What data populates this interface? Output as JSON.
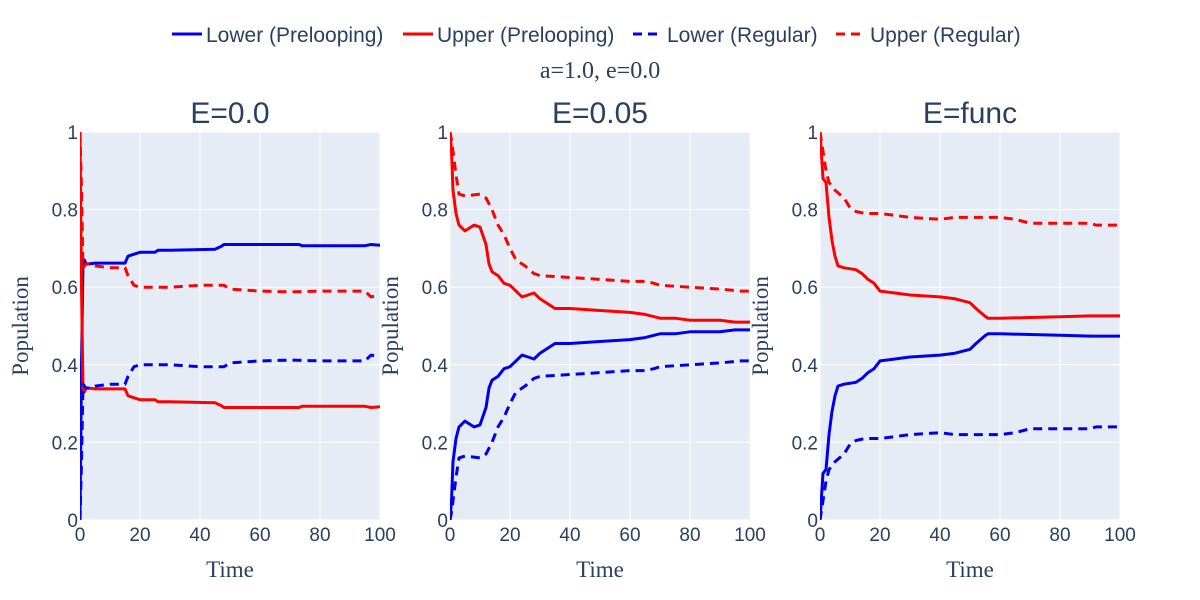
{
  "chart_data": {
    "type": "line",
    "subtitle": "a=1.0, e=0.0",
    "legend_position": "top",
    "colors": {
      "lower": "#0000ee",
      "upper": "#ff0000",
      "plot_bg": "#e5ecf6",
      "grid": "#ffffff",
      "text": "#2a3f5f"
    },
    "legend": [
      {
        "label": "Lower (Prelooping)",
        "color": "#0000ee",
        "dash": "solid"
      },
      {
        "label": "Upper (Prelooping)",
        "color": "#ff0000",
        "dash": "solid"
      },
      {
        "label": "Lower (Regular)",
        "color": "#0000ee",
        "dash": "dash"
      },
      {
        "label": "Upper (Regular)",
        "color": "#ff0000",
        "dash": "dash"
      }
    ],
    "panels": [
      {
        "title": "E=0.0",
        "xlabel": "Time",
        "ylabel": "Population",
        "xlim": [
          0,
          100
        ],
        "ylim": [
          0,
          1
        ],
        "xticks": [
          "0",
          "20",
          "40",
          "60",
          "80",
          "100"
        ],
        "yticks": [
          "0",
          "0.2",
          "0.4",
          "0.6",
          "0.8",
          "1"
        ],
        "series": [
          {
            "name": "Lower (Prelooping)",
            "color": "#0000ee",
            "dash": "solid",
            "x": [
              0,
              0.5,
              1,
              1.5,
              2,
              3,
              5,
              15,
              16,
              18,
              20,
              25,
              26,
              30,
              45,
              47,
              48,
              55,
              73,
              74,
              80,
              95,
              97,
              100
            ],
            "y": [
              0,
              0.4,
              0.66,
              0.67,
              0.66,
              0.66,
              0.662,
              0.662,
              0.68,
              0.685,
              0.69,
              0.69,
              0.695,
              0.695,
              0.698,
              0.705,
              0.71,
              0.71,
              0.71,
              0.707,
              0.707,
              0.707,
              0.71,
              0.708
            ]
          },
          {
            "name": "Upper (Prelooping)",
            "color": "#ff0000",
            "dash": "solid",
            "x": [
              0,
              0.5,
              1,
              1.5,
              2,
              3,
              5,
              15,
              16,
              18,
              20,
              25,
              26,
              30,
              45,
              47,
              48,
              55,
              73,
              74,
              80,
              95,
              97,
              100
            ],
            "y": [
              1,
              0.6,
              0.34,
              0.33,
              0.34,
              0.34,
              0.338,
              0.338,
              0.32,
              0.315,
              0.31,
              0.31,
              0.305,
              0.305,
              0.302,
              0.295,
              0.29,
              0.29,
              0.29,
              0.293,
              0.293,
              0.293,
              0.29,
              0.292
            ]
          },
          {
            "name": "Lower (Regular)",
            "color": "#0000ee",
            "dash": "dash",
            "x": [
              0,
              0.5,
              1,
              2,
              3,
              5,
              10,
              15,
              16,
              18,
              20,
              30,
              40,
              48,
              50,
              60,
              70,
              80,
              90,
              95,
              97,
              100
            ],
            "y": [
              0,
              0.15,
              0.35,
              0.34,
              0.34,
              0.345,
              0.35,
              0.35,
              0.37,
              0.395,
              0.4,
              0.4,
              0.395,
              0.395,
              0.405,
              0.41,
              0.412,
              0.41,
              0.41,
              0.41,
              0.425,
              0.42
            ]
          },
          {
            "name": "Upper (Regular)",
            "color": "#ff0000",
            "dash": "dash",
            "x": [
              0,
              0.5,
              1,
              2,
              3,
              5,
              10,
              15,
              16,
              18,
              20,
              30,
              40,
              48,
              50,
              60,
              70,
              80,
              90,
              95,
              97,
              100
            ],
            "y": [
              1,
              0.85,
              0.65,
              0.66,
              0.66,
              0.655,
              0.65,
              0.65,
              0.63,
              0.605,
              0.6,
              0.6,
              0.605,
              0.605,
              0.595,
              0.59,
              0.588,
              0.59,
              0.59,
              0.59,
              0.575,
              0.58
            ]
          }
        ]
      },
      {
        "title": "E=0.05",
        "xlabel": "Time",
        "ylabel": "Population",
        "xlim": [
          0,
          100
        ],
        "ylim": [
          0,
          1
        ],
        "xticks": [
          "0",
          "20",
          "40",
          "60",
          "80",
          "100"
        ],
        "yticks": [
          "0",
          "0.2",
          "0.4",
          "0.6",
          "0.8",
          "1"
        ],
        "series": [
          {
            "name": "Lower (Prelooping)",
            "color": "#0000ee",
            "dash": "solid",
            "x": [
              0,
              0.5,
              1,
              2,
              3,
              5,
              8,
              10,
              12,
              13,
              14,
              16,
              18,
              20,
              22,
              24,
              26,
              28,
              30,
              35,
              40,
              50,
              60,
              65,
              70,
              75,
              80,
              85,
              90,
              95,
              100
            ],
            "y": [
              0,
              0.05,
              0.15,
              0.21,
              0.24,
              0.255,
              0.24,
              0.245,
              0.29,
              0.34,
              0.36,
              0.37,
              0.39,
              0.395,
              0.41,
              0.425,
              0.42,
              0.415,
              0.43,
              0.455,
              0.455,
              0.46,
              0.465,
              0.47,
              0.48,
              0.48,
              0.485,
              0.485,
              0.485,
              0.49,
              0.49
            ]
          },
          {
            "name": "Upper (Prelooping)",
            "color": "#ff0000",
            "dash": "solid",
            "x": [
              0,
              0.5,
              1,
              2,
              3,
              5,
              8,
              10,
              12,
              13,
              14,
              16,
              18,
              20,
              22,
              24,
              26,
              28,
              30,
              35,
              40,
              50,
              60,
              65,
              70,
              75,
              80,
              85,
              90,
              95,
              100
            ],
            "y": [
              1,
              0.95,
              0.85,
              0.79,
              0.76,
              0.745,
              0.76,
              0.755,
              0.71,
              0.66,
              0.64,
              0.63,
              0.61,
              0.605,
              0.59,
              0.575,
              0.58,
              0.585,
              0.57,
              0.545,
              0.545,
              0.54,
              0.535,
              0.53,
              0.52,
              0.52,
              0.515,
              0.515,
              0.515,
              0.51,
              0.51
            ]
          },
          {
            "name": "Lower (Regular)",
            "color": "#0000ee",
            "dash": "dash",
            "x": [
              0,
              0.5,
              1,
              2,
              3,
              5,
              10,
              12,
              14,
              16,
              18,
              20,
              22,
              25,
              28,
              30,
              40,
              50,
              60,
              65,
              68,
              70,
              80,
              90,
              97,
              100
            ],
            "y": [
              0,
              0.02,
              0.05,
              0.11,
              0.16,
              0.165,
              0.16,
              0.17,
              0.2,
              0.24,
              0.265,
              0.3,
              0.33,
              0.345,
              0.365,
              0.37,
              0.375,
              0.38,
              0.385,
              0.385,
              0.39,
              0.395,
              0.4,
              0.405,
              0.41,
              0.41
            ]
          },
          {
            "name": "Upper (Regular)",
            "color": "#ff0000",
            "dash": "dash",
            "x": [
              0,
              0.5,
              1,
              2,
              3,
              5,
              10,
              12,
              14,
              16,
              18,
              20,
              22,
              25,
              28,
              30,
              40,
              50,
              60,
              65,
              68,
              70,
              80,
              90,
              97,
              100
            ],
            "y": [
              1,
              0.98,
              0.95,
              0.89,
              0.84,
              0.835,
              0.84,
              0.83,
              0.8,
              0.76,
              0.735,
              0.7,
              0.67,
              0.655,
              0.635,
              0.63,
              0.625,
              0.62,
              0.615,
              0.615,
              0.61,
              0.605,
              0.6,
              0.595,
              0.59,
              0.59
            ]
          }
        ]
      },
      {
        "title": "E=func",
        "xlabel": "Time",
        "ylabel": "Population",
        "xlim": [
          0,
          100
        ],
        "ylim": [
          0,
          1
        ],
        "xticks": [
          "0",
          "20",
          "40",
          "60",
          "80",
          "100"
        ],
        "yticks": [
          "0",
          "0.2",
          "0.4",
          "0.6",
          "0.8",
          "1"
        ],
        "series": [
          {
            "name": "Lower (Prelooping)",
            "color": "#0000ee",
            "dash": "solid",
            "x": [
              0,
              1,
              2,
              3,
              4,
              5,
              6,
              8,
              12,
              14,
              16,
              18,
              20,
              25,
              30,
              40,
              45,
              50,
              52,
              55,
              56,
              60,
              70,
              80,
              90,
              100
            ],
            "y": [
              0,
              0.12,
              0.13,
              0.22,
              0.28,
              0.32,
              0.345,
              0.35,
              0.355,
              0.365,
              0.38,
              0.39,
              0.41,
              0.415,
              0.42,
              0.425,
              0.43,
              0.44,
              0.455,
              0.475,
              0.48,
              0.48,
              0.478,
              0.476,
              0.474,
              0.474
            ]
          },
          {
            "name": "Upper (Prelooping)",
            "color": "#ff0000",
            "dash": "solid",
            "x": [
              0,
              1,
              2,
              3,
              4,
              5,
              6,
              8,
              12,
              14,
              16,
              18,
              20,
              25,
              30,
              40,
              45,
              50,
              52,
              55,
              56,
              60,
              70,
              80,
              90,
              100
            ],
            "y": [
              1,
              0.88,
              0.87,
              0.78,
              0.72,
              0.68,
              0.655,
              0.65,
              0.645,
              0.635,
              0.62,
              0.61,
              0.59,
              0.585,
              0.58,
              0.575,
              0.57,
              0.56,
              0.545,
              0.525,
              0.52,
              0.52,
              0.522,
              0.524,
              0.526,
              0.526
            ]
          },
          {
            "name": "Lower (Regular)",
            "color": "#0000ee",
            "dash": "dash",
            "x": [
              0,
              1,
              2,
              3,
              5,
              8,
              10,
              12,
              15,
              20,
              25,
              30,
              40,
              45,
              50,
              60,
              65,
              70,
              80,
              90,
              92,
              100
            ],
            "y": [
              0,
              0.05,
              0.1,
              0.13,
              0.15,
              0.17,
              0.195,
              0.205,
              0.21,
              0.21,
              0.215,
              0.22,
              0.225,
              0.22,
              0.22,
              0.22,
              0.225,
              0.235,
              0.235,
              0.235,
              0.24,
              0.24
            ]
          },
          {
            "name": "Upper (Regular)",
            "color": "#ff0000",
            "dash": "dash",
            "x": [
              0,
              1,
              2,
              3,
              5,
              8,
              10,
              12,
              15,
              20,
              25,
              30,
              40,
              45,
              50,
              60,
              65,
              70,
              80,
              90,
              92,
              100
            ],
            "y": [
              1,
              0.95,
              0.9,
              0.87,
              0.85,
              0.83,
              0.805,
              0.795,
              0.79,
              0.79,
              0.785,
              0.78,
              0.775,
              0.78,
              0.78,
              0.78,
              0.775,
              0.765,
              0.765,
              0.765,
              0.76,
              0.76
            ]
          }
        ]
      }
    ]
  }
}
